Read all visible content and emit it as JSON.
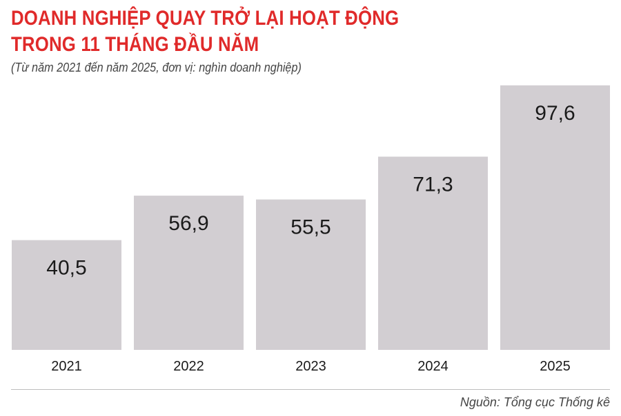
{
  "header": {
    "title_line1": "DOANH NGHIỆP QUAY TRỞ LẠI HOẠT ĐỘNG",
    "title_line2": "TRONG 11 THÁNG ĐẦU NĂM",
    "subtitle": "(Từ năm 2021 đến năm 2025, đơn vị: nghìn doanh nghiệp)"
  },
  "footer": {
    "source": "Nguồn: Tổng cục Thống kê"
  },
  "colors": {
    "title": "#e02a2a",
    "bar": "#d2ced2",
    "value_label": "#1a1a1a",
    "tick_label": "#1a1a1a"
  },
  "chart_data": {
    "type": "bar",
    "categories": [
      "2021",
      "2022",
      "2023",
      "2024",
      "2025"
    ],
    "values": [
      40.5,
      56.9,
      55.5,
      71.3,
      97.6
    ],
    "value_labels": [
      "40,5",
      "56,9",
      "55,5",
      "71,3",
      "97,6"
    ],
    "title": "DOANH NGHIỆP QUAY TRỞ LẠI HOẠT ĐỘNG TRONG 11 THÁNG ĐẦU NĂM",
    "subtitle": "(Từ năm 2021 đến năm 2025, đơn vị: nghìn doanh nghiệp)",
    "xlabel": "",
    "ylabel": "",
    "ylim": [
      0,
      100
    ],
    "grid": false,
    "legend": "none"
  }
}
